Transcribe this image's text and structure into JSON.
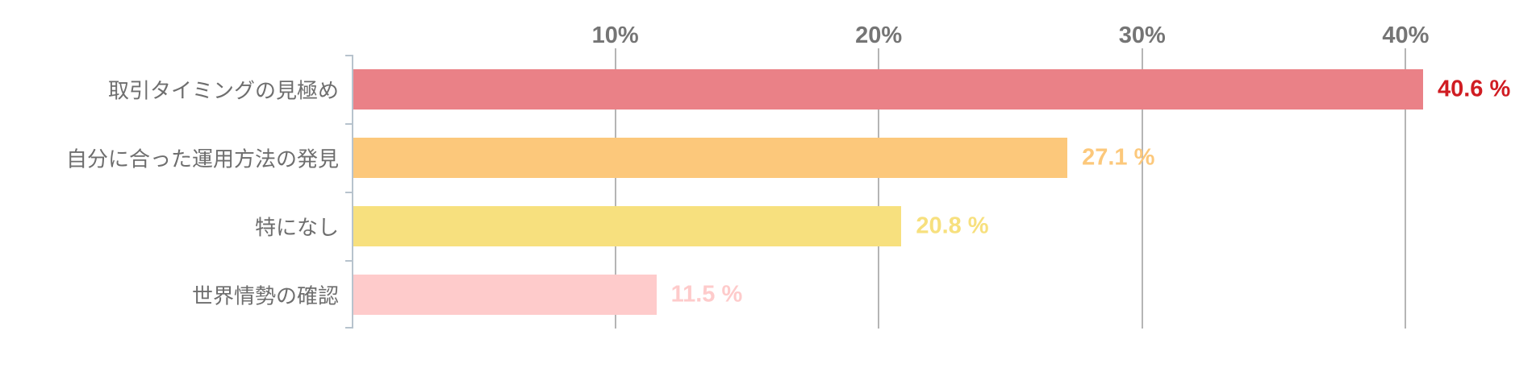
{
  "chart_data": {
    "type": "bar",
    "orientation": "horizontal",
    "title": "",
    "xlabel": "",
    "ylabel": "",
    "categories": [
      "取引タイミングの見極め",
      "自分に合った運用方法の発見",
      "特になし",
      "世界情勢の確認"
    ],
    "values": [
      40.6,
      27.1,
      20.8,
      11.5
    ],
    "value_labels": [
      "40.6 %",
      "27.1 %",
      "20.8 %",
      "11.5 %"
    ],
    "bar_colors": [
      "#ea8187",
      "#fcc87b",
      "#f7e07e",
      "#fecbcb"
    ],
    "value_label_colors": [
      "#d01c22",
      "#fcc87b",
      "#f7e07e",
      "#fecbcb"
    ],
    "x_ticks": [
      {
        "label": "10%",
        "value": 10
      },
      {
        "label": "20%",
        "value": 20
      },
      {
        "label": "30%",
        "value": 30
      },
      {
        "label": "40%",
        "value": 40
      }
    ],
    "xlim": [
      0,
      44.8
    ],
    "grid": "vertical-gridlines-behind-bars",
    "legend": "none",
    "axis_color": "#b7c3cd",
    "gridline_color": "#b5b5b5",
    "tick_label_color": "#757575",
    "category_label_color": "#6e6e6e",
    "background_color": "#ffffff"
  }
}
